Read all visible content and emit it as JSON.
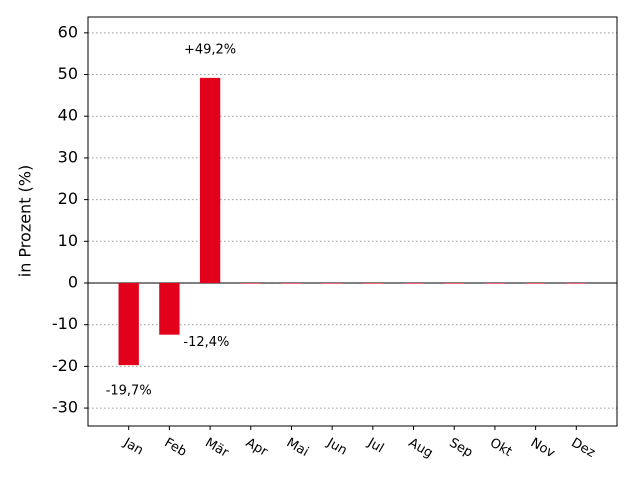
{
  "chart_data": {
    "type": "bar",
    "y_label": "in Prozent (%)",
    "categories": [
      "Jan",
      "Feb",
      "Mär",
      "Apr",
      "Mai",
      "Jun",
      "Jul",
      "Aug",
      "Sep",
      "Okt",
      "Nov",
      "Dez"
    ],
    "values": [
      -19.7,
      -12.4,
      49.2,
      0,
      0,
      0,
      0,
      0,
      0,
      0,
      0,
      0
    ],
    "value_labels": [
      "-19,7%",
      "-12,4%",
      "+49,2%",
      null,
      null,
      null,
      null,
      null,
      null,
      null,
      null,
      null
    ],
    "color": "#e2001a",
    "ylim": [
      -34.3,
      63.8
    ],
    "yticks": [
      -30,
      -20,
      -10,
      0,
      10,
      20,
      30,
      40,
      50,
      60
    ],
    "grid": true
  }
}
